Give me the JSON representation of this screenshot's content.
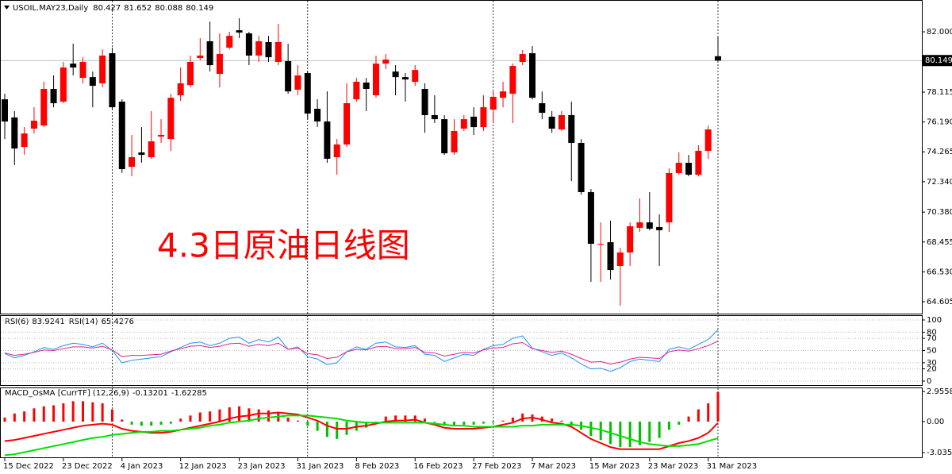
{
  "chart_data": [
    {
      "type": "candlestick",
      "title": "USOIL.MAY23,Daily",
      "annotation": "4.3日原油日线图",
      "categories": [
        "15 Dec 2022",
        null,
        null,
        null,
        null,
        null,
        "23 Dec 2022",
        null,
        null,
        null,
        null,
        null,
        "4 Jan 2023",
        null,
        null,
        null,
        null,
        null,
        "12 Jan 2023",
        null,
        null,
        null,
        null,
        null,
        "23 Jan 2023",
        null,
        null,
        null,
        null,
        null,
        "31 Jan 2023",
        null,
        null,
        null,
        null,
        null,
        "8 Feb 2023",
        null,
        null,
        null,
        null,
        null,
        "16 Feb 2023",
        null,
        null,
        null,
        null,
        null,
        "27 Feb 2023",
        null,
        null,
        null,
        null,
        null,
        "7 Mar 2023",
        null,
        null,
        null,
        null,
        null,
        "15 Mar 2023",
        null,
        null,
        null,
        null,
        null,
        "23 Mar 2023",
        null,
        null,
        null,
        null,
        null,
        "31 Mar 2023",
        null
      ],
      "open": [
        77.65,
        76.48,
        74.58,
        75.76,
        75.96,
        78.32,
        77.5,
        79.95,
        79.03,
        79.08,
        78.68,
        80.62,
        77.5,
        73.3,
        74.23,
        73.92,
        75.25,
        75.09,
        77.91,
        78.57,
        80.31,
        81.39,
        79.29,
        80.98,
        82.1,
        81.9,
        80.47,
        81.34,
        80.06,
        80.11,
        78.27,
        79.34,
        77.04,
        76.22,
        73.92,
        74.74,
        77.65,
        78.73,
        77.91,
        79.95,
        79.44,
        79.08,
        78.78,
        78.32,
        76.63,
        76.37,
        74.23,
        75.76,
        76.53,
        75.86,
        76.99,
        77.75,
        78.01,
        80.06,
        80.62,
        77.4,
        76.53,
        75.71,
        76.63,
        74.84,
        71.67,
        68.29,
        68.44,
        66.91,
        67.78,
        69.37,
        69.72,
        69.42,
        69.72,
        72.9,
        73.56,
        72.79,
        74.33,
        80.427
      ],
      "high": [
        78.01,
        76.89,
        75.86,
        77.14,
        78.78,
        79.19,
        80.06,
        81.23,
        80.36,
        79.44,
        80.87,
        80.98,
        77.65,
        75.35,
        75.86,
        76.89,
        76.37,
        78.01,
        79.7,
        80.47,
        81.59,
        82.66,
        81.9,
        82.0,
        82.87,
        82.0,
        81.74,
        81.74,
        82.51,
        81.23,
        79.85,
        79.44,
        77.65,
        78.16,
        75.09,
        78.68,
        79.03,
        79.03,
        80.47,
        80.57,
        79.85,
        79.34,
        79.85,
        78.68,
        77.91,
        76.63,
        76.37,
        76.63,
        77.14,
        77.91,
        78.16,
        78.78,
        79.95,
        80.82,
        81.08,
        78.16,
        76.89,
        76.89,
        77.5,
        75.09,
        71.87,
        69.72,
        69.83,
        68.09,
        69.72,
        71.26,
        71.67,
        70.24,
        73.2,
        74.23,
        74.07,
        74.69,
        75.96,
        81.652
      ],
      "low": [
        75.09,
        73.41,
        74.07,
        75.45,
        75.86,
        77.14,
        77.4,
        79.19,
        78.68,
        77.14,
        78.42,
        76.99,
        72.9,
        72.69,
        73.56,
        73.82,
        74.84,
        74.33,
        77.55,
        78.42,
        80.16,
        79.44,
        78.42,
        80.87,
        81.59,
        79.85,
        80.06,
        80.06,
        79.85,
        78.01,
        77.91,
        76.37,
        75.86,
        73.56,
        72.79,
        74.58,
        77.5,
        76.89,
        77.75,
        79.6,
        77.91,
        77.5,
        78.52,
        75.5,
        76.12,
        74.07,
        74.07,
        75.61,
        75.35,
        75.61,
        76.12,
        77.14,
        76.12,
        79.85,
        77.65,
        76.37,
        75.5,
        75.61,
        72.38,
        71.51,
        65.89,
        65.89,
        66.04,
        64.35,
        66.91,
        69.11,
        69.21,
        66.91,
        69.11,
        72.79,
        72.69,
        72.69,
        73.82,
        80.088
      ],
      "close": [
        76.22,
        74.48,
        75.45,
        76.27,
        78.32,
        77.4,
        79.7,
        79.7,
        80.06,
        78.52,
        80.47,
        77.14,
        73.15,
        73.92,
        74.07,
        74.94,
        75.35,
        77.75,
        78.68,
        80.06,
        80.47,
        79.85,
        80.57,
        81.74,
        81.95,
        80.47,
        81.39,
        80.36,
        81.34,
        78.16,
        79.19,
        76.73,
        76.22,
        73.82,
        74.74,
        77.4,
        78.78,
        78.32,
        79.95,
        80.21,
        79.08,
        78.93,
        79.54,
        76.63,
        76.37,
        74.17,
        75.61,
        76.37,
        75.86,
        77.14,
        77.81,
        78.16,
        79.8,
        80.57,
        77.75,
        76.78,
        75.76,
        76.63,
        74.84,
        71.67,
        68.34,
        68.34,
        66.65,
        67.78,
        69.47,
        69.72,
        69.31,
        69.21,
        72.9,
        73.56,
        72.79,
        74.33,
        75.71,
        80.149
      ],
      "up_color": "#ff0000",
      "down_color": "#000000",
      "ylim": [
        63.84,
        84.05
      ],
      "yticks": [
        {
          "value": 82,
          "label": "82.000"
        },
        78.115,
        {
          "value": 76.19,
          "label": "76.190"
        },
        74.265,
        {
          "value": 72.34,
          "label": "72.340"
        },
        {
          "value": 70.38,
          "label": "70.380"
        },
        68.455,
        {
          "value": 66.53,
          "label": "66.530"
        },
        64.605
      ],
      "grid": false
    },
    {
      "type": "line",
      "series": [
        {
          "name": "RSI(6)",
          "color": "#1e90ff",
          "values": [
            45,
            38,
            42,
            48,
            55,
            52,
            58,
            62,
            60,
            56,
            62,
            50,
            30,
            34,
            36,
            38,
            40,
            48,
            55,
            62,
            64,
            58,
            62,
            70,
            72,
            62,
            68,
            64,
            72,
            52,
            56,
            40,
            36,
            27,
            30,
            48,
            56,
            52,
            62,
            64,
            56,
            55,
            58,
            44,
            42,
            32,
            38,
            44,
            42,
            52,
            58,
            60,
            70,
            74,
            54,
            48,
            42,
            46,
            38,
            28,
            20,
            21,
            16,
            22,
            32,
            36,
            34,
            32,
            52,
            56,
            52,
            60,
            68,
            83.9241
          ]
        },
        {
          "name": "RSI(14)",
          "color": "#e0218a",
          "values": [
            46,
            42,
            44,
            47,
            51,
            50,
            53,
            56,
            56,
            54,
            57,
            51,
            40,
            42,
            42,
            43,
            44,
            49,
            53,
            57,
            58,
            55,
            57,
            61,
            62,
            57,
            60,
            58,
            62,
            52,
            54,
            45,
            43,
            37,
            39,
            48,
            52,
            51,
            56,
            57,
            53,
            53,
            55,
            47,
            46,
            41,
            44,
            47,
            46,
            51,
            54,
            55,
            61,
            63,
            53,
            50,
            47,
            49,
            44,
            37,
            31,
            32,
            28,
            31,
            36,
            39,
            38,
            37,
            48,
            51,
            49,
            53,
            58,
            65.4276
          ]
        }
      ],
      "ylim": [
        -7.8,
        107.8
      ],
      "yticks": [
        100,
        80,
        70,
        50,
        30,
        20,
        0
      ],
      "grid": true
    },
    {
      "type": "macd",
      "title": "MACD_OsMA [CurrTF] (12,26,9)",
      "osma": {
        "up_color": "#ff0000",
        "down_color": "#00c000",
        "values": [
          0.4,
          0.8,
          1.0,
          1.3,
          1.5,
          1.6,
          1.8,
          2.0,
          2.0,
          1.9,
          1.8,
          1.2,
          0.2,
          -0.3,
          -0.4,
          -0.4,
          -0.3,
          -0.2,
          0.3,
          0.6,
          0.9,
          1.0,
          1.2,
          1.4,
          1.5,
          1.3,
          1.2,
          1.1,
          0.9,
          0.4,
          0.1,
          -0.4,
          -0.9,
          -1.5,
          -1.7,
          -1.3,
          -0.9,
          -0.6,
          -0.1,
          0.5,
          0.6,
          0.6,
          0.6,
          0.3,
          -0.1,
          -0.4,
          -0.4,
          -0.3,
          -0.3,
          -0.2,
          -0.1,
          0.1,
          0.4,
          0.8,
          0.7,
          0.5,
          0.3,
          0.1,
          -0.3,
          -0.8,
          -1.4,
          -1.8,
          -2.2,
          -2.5,
          -2.5,
          -2.3,
          -2.0,
          -1.6,
          -0.8,
          -0.3,
          0.5,
          1.2,
          1.8,
          2.9
        ]
      },
      "lines": [
        {
          "color": "#ff0000",
          "values": [
            -1.9,
            -1.8,
            -1.6,
            -1.4,
            -1.2,
            -1.0,
            -0.8,
            -0.6,
            -0.4,
            -0.3,
            -0.2,
            -0.3,
            -0.7,
            -0.9,
            -1.0,
            -1.1,
            -1.1,
            -1.0,
            -0.8,
            -0.6,
            -0.4,
            -0.2,
            0.0,
            0.3,
            0.5,
            0.6,
            0.8,
            0.8,
            0.9,
            0.8,
            0.7,
            0.4,
            0.1,
            -0.4,
            -0.7,
            -0.7,
            -0.5,
            -0.4,
            -0.2,
            0.0,
            0.1,
            0.1,
            0.2,
            -0.1,
            -0.3,
            -0.6,
            -0.7,
            -0.7,
            -0.7,
            -0.6,
            -0.5,
            -0.3,
            -0.1,
            0.3,
            0.4,
            0.2,
            -0.1,
            -0.2,
            -0.5,
            -1.1,
            -1.7,
            -2.1,
            -2.5,
            -2.7,
            -2.7,
            -2.7,
            -2.7,
            -2.7,
            -2.4,
            -2.1,
            -1.9,
            -1.6,
            -1.1,
            -0.13201
          ]
        },
        {
          "color": "#00e000",
          "values": [
            -3.3,
            -3.2,
            -3.0,
            -2.8,
            -2.6,
            -2.4,
            -2.2,
            -2.0,
            -1.8,
            -1.6,
            -1.5,
            -1.3,
            -1.2,
            -1.1,
            -1.0,
            -1.0,
            -0.9,
            -0.9,
            -0.8,
            -0.7,
            -0.6,
            -0.4,
            -0.3,
            -0.1,
            0.0,
            0.1,
            0.3,
            0.4,
            0.5,
            0.6,
            0.6,
            0.6,
            0.5,
            0.4,
            0.3,
            0.1,
            0.0,
            -0.1,
            -0.1,
            -0.1,
            -0.1,
            -0.1,
            -0.1,
            -0.1,
            -0.2,
            -0.3,
            -0.4,
            -0.4,
            -0.5,
            -0.5,
            -0.5,
            -0.5,
            -0.5,
            -0.4,
            -0.4,
            -0.3,
            -0.3,
            -0.3,
            -0.3,
            -0.4,
            -0.6,
            -0.8,
            -1.1,
            -1.4,
            -1.7,
            -2.0,
            -2.2,
            -2.3,
            -2.4,
            -2.4,
            -2.3,
            -2.2,
            -1.9,
            -1.62285
          ]
        }
      ],
      "ylim": [
        -3.5,
        3.35
      ],
      "yticks": [
        2.95585,
        {
          "value": 0,
          "label": "0.00"
        },
        -3.03525
      ],
      "grid": false
    }
  ]
}
